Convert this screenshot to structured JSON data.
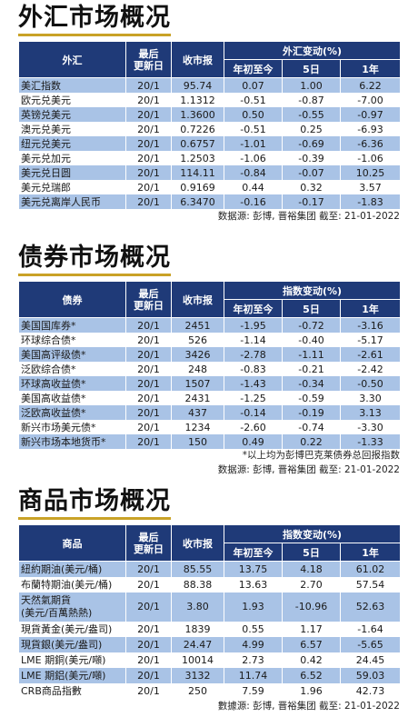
{
  "fx": {
    "title": "外汇市场概况",
    "headers": {
      "name": "外汇",
      "date": "最后\n更新日",
      "close": "收市报",
      "change": "外汇变动(%)",
      "ytd": "年初至今",
      "d5": "5日",
      "y1": "1年"
    },
    "rows": [
      {
        "name": "美汇指数",
        "date": "20/1",
        "close": "95.74",
        "ytd": "0.07",
        "d5": "1.00",
        "y1": "6.22"
      },
      {
        "name": "欧元兑美元",
        "date": "20/1",
        "close": "1.1312",
        "ytd": "-0.51",
        "d5": "-0.87",
        "y1": "-7.00"
      },
      {
        "name": "英镑兑美元",
        "date": "20/1",
        "close": "1.3600",
        "ytd": "0.50",
        "d5": "-0.55",
        "y1": "-0.97"
      },
      {
        "name": "澳元兑美元",
        "date": "20/1",
        "close": "0.7226",
        "ytd": "-0.51",
        "d5": "0.25",
        "y1": "-6.93"
      },
      {
        "name": "纽元兑美元",
        "date": "20/1",
        "close": "0.6757",
        "ytd": "-1.01",
        "d5": "-0.69",
        "y1": "-6.36"
      },
      {
        "name": "美元兑加元",
        "date": "20/1",
        "close": "1.2503",
        "ytd": "-1.06",
        "d5": "-0.39",
        "y1": "-1.06"
      },
      {
        "name": "美元兑日圆",
        "date": "20/1",
        "close": "114.11",
        "ytd": "-0.84",
        "d5": "-0.07",
        "y1": "10.25"
      },
      {
        "name": "美元兑瑞郎",
        "date": "20/1",
        "close": "0.9169",
        "ytd": "0.44",
        "d5": "0.32",
        "y1": "3.57"
      },
      {
        "name": "美元兑离岸人民币",
        "date": "20/1",
        "close": "6.3470",
        "ytd": "-0.16",
        "d5": "-0.17",
        "y1": "-1.83"
      }
    ],
    "source": "数据源: 彭博, 晋裕集团 截至: 21-01-2022"
  },
  "bonds": {
    "title": "债券市场概况",
    "headers": {
      "name": "债券",
      "date": "最后\n更新日",
      "close": "收市报",
      "change": "指数变动(%)",
      "ytd": "年初至今",
      "d5": "5日",
      "y1": "1年"
    },
    "rows": [
      {
        "name": "美国国库券*",
        "date": "20/1",
        "close": "2451",
        "ytd": "-1.95",
        "d5": "-0.72",
        "y1": "-3.16"
      },
      {
        "name": "环球综合债*",
        "date": "20/1",
        "close": "526",
        "ytd": "-1.14",
        "d5": "-0.40",
        "y1": "-5.17"
      },
      {
        "name": "美国高评级债*",
        "date": "20/1",
        "close": "3426",
        "ytd": "-2.78",
        "d5": "-1.11",
        "y1": "-2.61"
      },
      {
        "name": "泛欧综合债*",
        "date": "20/1",
        "close": "248",
        "ytd": "-0.83",
        "d5": "-0.21",
        "y1": "-2.42"
      },
      {
        "name": "环球高收益债*",
        "date": "20/1",
        "close": "1507",
        "ytd": "-1.43",
        "d5": "-0.34",
        "y1": "-0.50"
      },
      {
        "name": "美国高收益债*",
        "date": "20/1",
        "close": "2431",
        "ytd": "-1.25",
        "d5": "-0.59",
        "y1": "3.30"
      },
      {
        "name": "泛欧高收益债*",
        "date": "20/1",
        "close": "437",
        "ytd": "-0.14",
        "d5": "-0.19",
        "y1": "3.13"
      },
      {
        "name": "新兴市场美元债*",
        "date": "20/1",
        "close": "1234",
        "ytd": "-2.60",
        "d5": "-0.74",
        "y1": "-3.30"
      },
      {
        "name": "新兴市场本地货币*",
        "date": "20/1",
        "close": "150",
        "ytd": "0.49",
        "d5": "0.22",
        "y1": "-1.33"
      }
    ],
    "note": "*以上均为彭博巴克莱债券总回报指数",
    "source": "数据源: 彭博, 晋裕集团 截至: 21-01-2022"
  },
  "commodities": {
    "title": "商品市场概况",
    "headers": {
      "name": "商品",
      "date": "最后\n更新日",
      "close": "收市报",
      "change": "指数变动(%)",
      "ytd": "年初至今",
      "d5": "5日",
      "y1": "1年"
    },
    "rows": [
      {
        "name": "紐約期油(美元/桶)",
        "date": "20/1",
        "close": "85.55",
        "ytd": "13.75",
        "d5": "4.18",
        "y1": "61.02"
      },
      {
        "name": "布蘭特期油(美元/桶)",
        "date": "20/1",
        "close": "88.38",
        "ytd": "13.63",
        "d5": "2.70",
        "y1": "57.54"
      },
      {
        "name": "天然氣期貨\n(美元/百萬熱熱)",
        "date": "20/1",
        "close": "3.80",
        "ytd": "1.93",
        "d5": "-10.96",
        "y1": "52.63"
      },
      {
        "name": "現貨黃金(美元/盎司)",
        "date": "20/1",
        "close": "1839",
        "ytd": "0.55",
        "d5": "1.17",
        "y1": "-1.64"
      },
      {
        "name": "現貨銀(美元/盎司)",
        "date": "20/1",
        "close": "24.47",
        "ytd": "4.99",
        "d5": "6.57",
        "y1": "-5.65"
      },
      {
        "name": "LME 期銅(美元/噸)",
        "date": "20/1",
        "close": "10014",
        "ytd": "2.73",
        "d5": "0.42",
        "y1": "24.45"
      },
      {
        "name": "LME 期鋁(美元/噸)",
        "date": "20/1",
        "close": "3132",
        "ytd": "11.74",
        "d5": "6.52",
        "y1": "59.03"
      },
      {
        "name": "CRB商品指數",
        "date": "20/1",
        "close": "250",
        "ytd": "7.59",
        "d5": "1.96",
        "y1": "42.73"
      }
    ],
    "source": "數據源: 彭博, 晋裕集团 截至: 21-01-2022"
  }
}
